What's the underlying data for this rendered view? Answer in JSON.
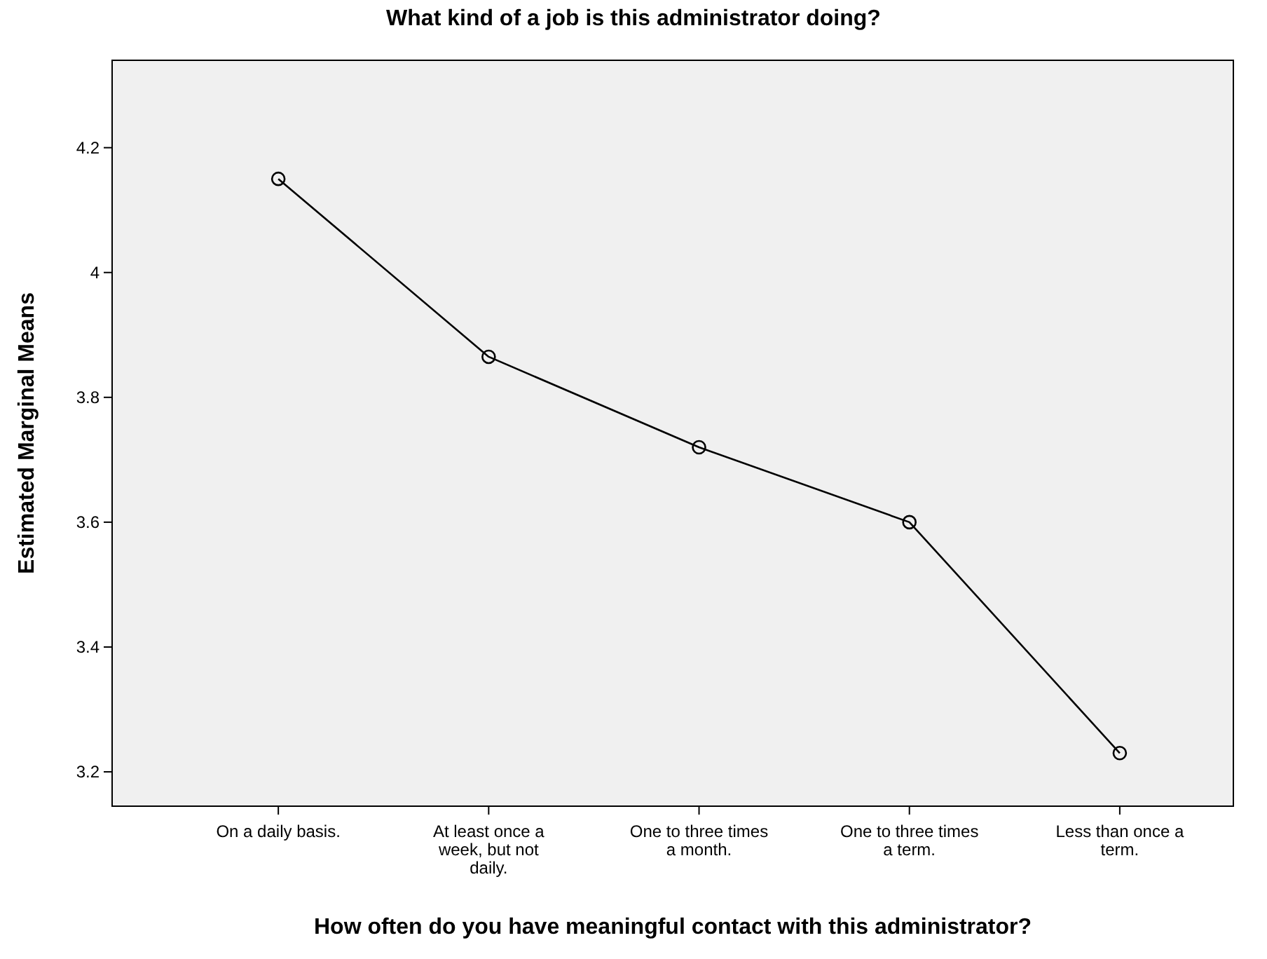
{
  "chart_data": {
    "type": "line",
    "title": "What kind of a job is this administrator doing?",
    "xlabel": "How often do you have meaningful contact with this administrator?",
    "ylabel": "Estimated Marginal Means",
    "categories": [
      "On a daily basis.",
      "At least once a week, but not daily.",
      "One to three times a month.",
      "One to three times a term.",
      "Less than once a term."
    ],
    "series": [
      {
        "color": "#000000",
        "values": [
          4.15,
          3.865,
          3.72,
          3.6,
          3.23
        ]
      }
    ],
    "ylim": [
      3.145,
      4.34
    ],
    "yticks": [
      3.2,
      3.4,
      3.6,
      3.8,
      4,
      4.2
    ],
    "grid": false,
    "marker": "circle",
    "line_style": "solid"
  }
}
